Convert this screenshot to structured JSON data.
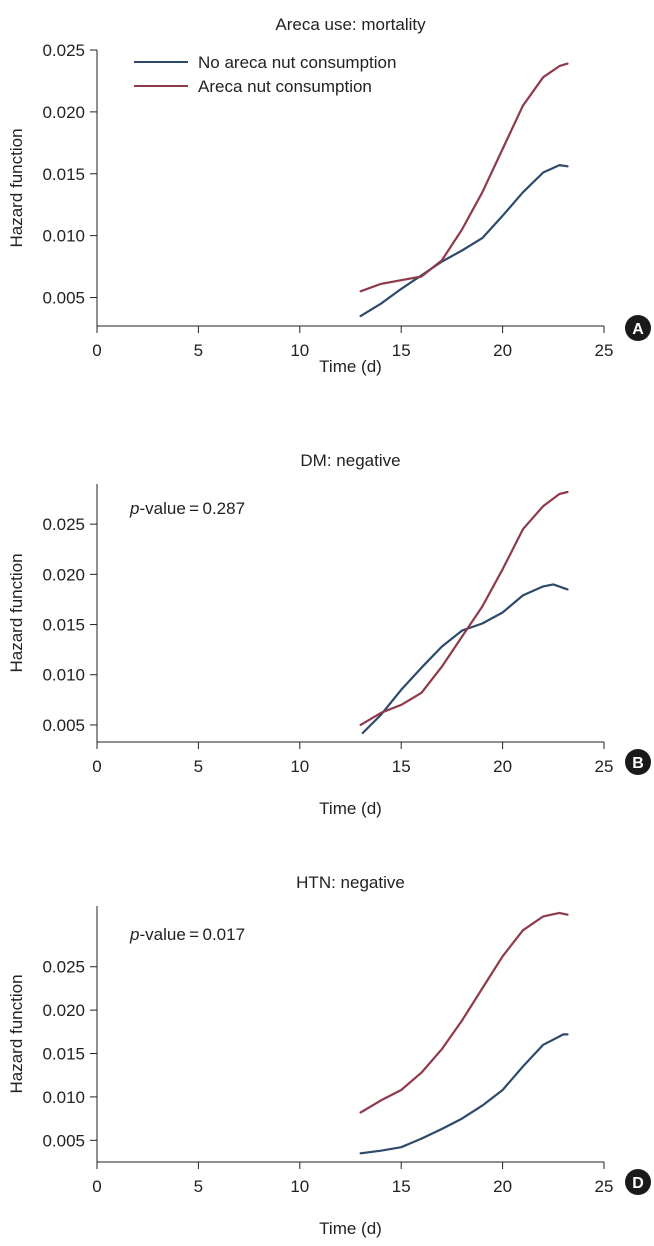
{
  "colors": {
    "no_areca": "#2e4a6b",
    "areca": "#8e3a4a",
    "axis": "#222222"
  },
  "chart_data": [
    {
      "type": "line",
      "panel": "A",
      "title": "Areca use: mortality",
      "xlabel": "Time (d)",
      "ylabel": "Hazard function",
      "xlim": [
        0,
        25
      ],
      "ylim": [
        0.0027,
        0.025
      ],
      "xticks": [
        "0",
        "5",
        "10",
        "15",
        "20",
        "25"
      ],
      "xtick_values": [
        0,
        5,
        10,
        15,
        20,
        25
      ],
      "yticks": [
        "0.005",
        "0.010",
        "0.015",
        "0.020",
        "0.025"
      ],
      "ytick_values": [
        0.005,
        0.01,
        0.015,
        0.02,
        0.025
      ],
      "legend": {
        "placement": "top-left",
        "entries": [
          "No areca nut consumption",
          "Areca nut consumption"
        ]
      },
      "annotation": "",
      "series": [
        {
          "name": "No areca nut consumption",
          "color_key": "no_areca",
          "x": [
            13,
            14,
            15,
            16,
            17,
            18,
            19,
            20,
            21,
            22,
            22.8,
            23.2
          ],
          "y": [
            0.0035,
            0.0045,
            0.0057,
            0.0068,
            0.0079,
            0.0088,
            0.0098,
            0.0116,
            0.0135,
            0.0151,
            0.0157,
            0.0156
          ]
        },
        {
          "name": "Areca nut consumption",
          "color_key": "areca",
          "x": [
            13,
            14,
            15,
            16,
            17,
            18,
            19,
            20,
            21,
            22,
            22.8,
            23.2
          ],
          "y": [
            0.0055,
            0.0061,
            0.0064,
            0.0067,
            0.008,
            0.0105,
            0.0135,
            0.017,
            0.0205,
            0.0228,
            0.0237,
            0.0239
          ]
        }
      ]
    },
    {
      "type": "line",
      "panel": "B",
      "title": "DM: negative",
      "xlabel": "Time (d)",
      "ylabel": "Hazard function",
      "xlim": [
        0,
        25
      ],
      "ylim": [
        0.0033,
        0.029
      ],
      "xticks": [
        "0",
        "5",
        "10",
        "15",
        "20",
        "25"
      ],
      "xtick_values": [
        0,
        5,
        10,
        15,
        20,
        25
      ],
      "yticks": [
        "0.005",
        "0.010",
        "0.015",
        "0.020",
        "0.025"
      ],
      "ytick_values": [
        0.005,
        0.01,
        0.015,
        0.02,
        0.025
      ],
      "annotation_italic": "p",
      "annotation": "-value = 0.287",
      "series": [
        {
          "name": "No areca nut consumption",
          "color_key": "no_areca",
          "x": [
            13.1,
            14,
            15,
            16,
            17,
            18,
            19,
            20,
            21,
            22,
            22.5,
            23.2
          ],
          "y": [
            0.0042,
            0.006,
            0.0085,
            0.0107,
            0.0128,
            0.0144,
            0.0151,
            0.0162,
            0.0179,
            0.0188,
            0.019,
            0.0185
          ]
        },
        {
          "name": "Areca nut consumption",
          "color_key": "areca",
          "x": [
            13,
            14,
            15,
            16,
            17,
            18,
            19,
            20,
            21,
            22,
            22.8,
            23.2
          ],
          "y": [
            0.005,
            0.0062,
            0.007,
            0.0082,
            0.0108,
            0.0138,
            0.0168,
            0.0205,
            0.0245,
            0.0268,
            0.028,
            0.0282
          ]
        }
      ]
    },
    {
      "type": "line",
      "panel": "D",
      "title": "HTN: negative",
      "xlabel": "Time (d)",
      "ylabel": "Hazard function",
      "xlim": [
        0,
        25
      ],
      "ylim": [
        0.0025,
        0.032
      ],
      "xticks": [
        "0",
        "5",
        "10",
        "15",
        "20",
        "25"
      ],
      "xtick_values": [
        0,
        5,
        10,
        15,
        20,
        25
      ],
      "yticks": [
        "0.005",
        "0.010",
        "0.015",
        "0.020",
        "0.025"
      ],
      "ytick_values": [
        0.005,
        0.01,
        0.015,
        0.02,
        0.025
      ],
      "annotation_italic": "p",
      "annotation": "-value = 0.017",
      "series": [
        {
          "name": "No areca nut consumption",
          "color_key": "no_areca",
          "x": [
            13,
            14,
            15,
            16,
            17,
            18,
            19,
            20,
            21,
            22,
            23,
            23.2
          ],
          "y": [
            0.0035,
            0.0038,
            0.0042,
            0.0052,
            0.0063,
            0.0075,
            0.009,
            0.0108,
            0.0135,
            0.016,
            0.0172,
            0.0172
          ]
        },
        {
          "name": "Areca nut consumption",
          "color_key": "areca",
          "x": [
            13,
            14,
            15,
            16,
            17,
            18,
            19,
            20,
            21,
            22,
            22.8,
            23.2
          ],
          "y": [
            0.0082,
            0.0096,
            0.0108,
            0.0128,
            0.0155,
            0.0188,
            0.0225,
            0.0262,
            0.0292,
            0.0308,
            0.0312,
            0.031
          ]
        }
      ]
    }
  ]
}
